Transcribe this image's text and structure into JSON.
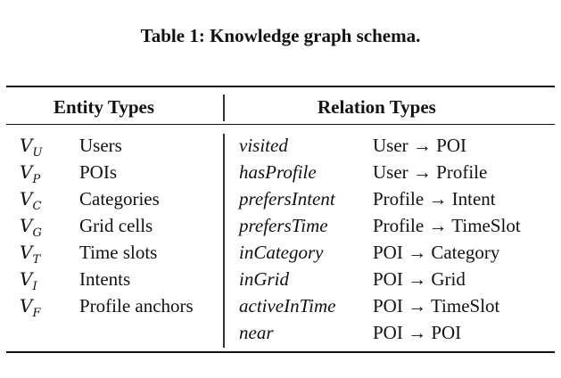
{
  "caption": "Table 1: Knowledge graph schema.",
  "headers": {
    "entity": "Entity Types",
    "relation": "Relation Types"
  },
  "entities": [
    {
      "symbol": "V",
      "subscript": "U",
      "name": "Users"
    },
    {
      "symbol": "V",
      "subscript": "P",
      "name": "POIs"
    },
    {
      "symbol": "V",
      "subscript": "C",
      "name": "Categories"
    },
    {
      "symbol": "V",
      "subscript": "G",
      "name": "Grid cells"
    },
    {
      "symbol": "V",
      "subscript": "T",
      "name": "Time slots"
    },
    {
      "symbol": "V",
      "subscript": "I",
      "name": "Intents"
    },
    {
      "symbol": "V",
      "subscript": "F",
      "name": "Profile anchors"
    }
  ],
  "relations": [
    {
      "name": "visited",
      "mapping": "User → POI"
    },
    {
      "name": "hasProfile",
      "mapping": "User → Profile"
    },
    {
      "name": "prefersIntent",
      "mapping": "Profile → Intent"
    },
    {
      "name": "prefersTime",
      "mapping": "Profile → TimeSlot"
    },
    {
      "name": "inCategory",
      "mapping": "POI → Category"
    },
    {
      "name": "inGrid",
      "mapping": "POI → Grid"
    },
    {
      "name": "activeInTime",
      "mapping": "POI → TimeSlot"
    },
    {
      "name": "near",
      "mapping": "POI → POI"
    }
  ]
}
